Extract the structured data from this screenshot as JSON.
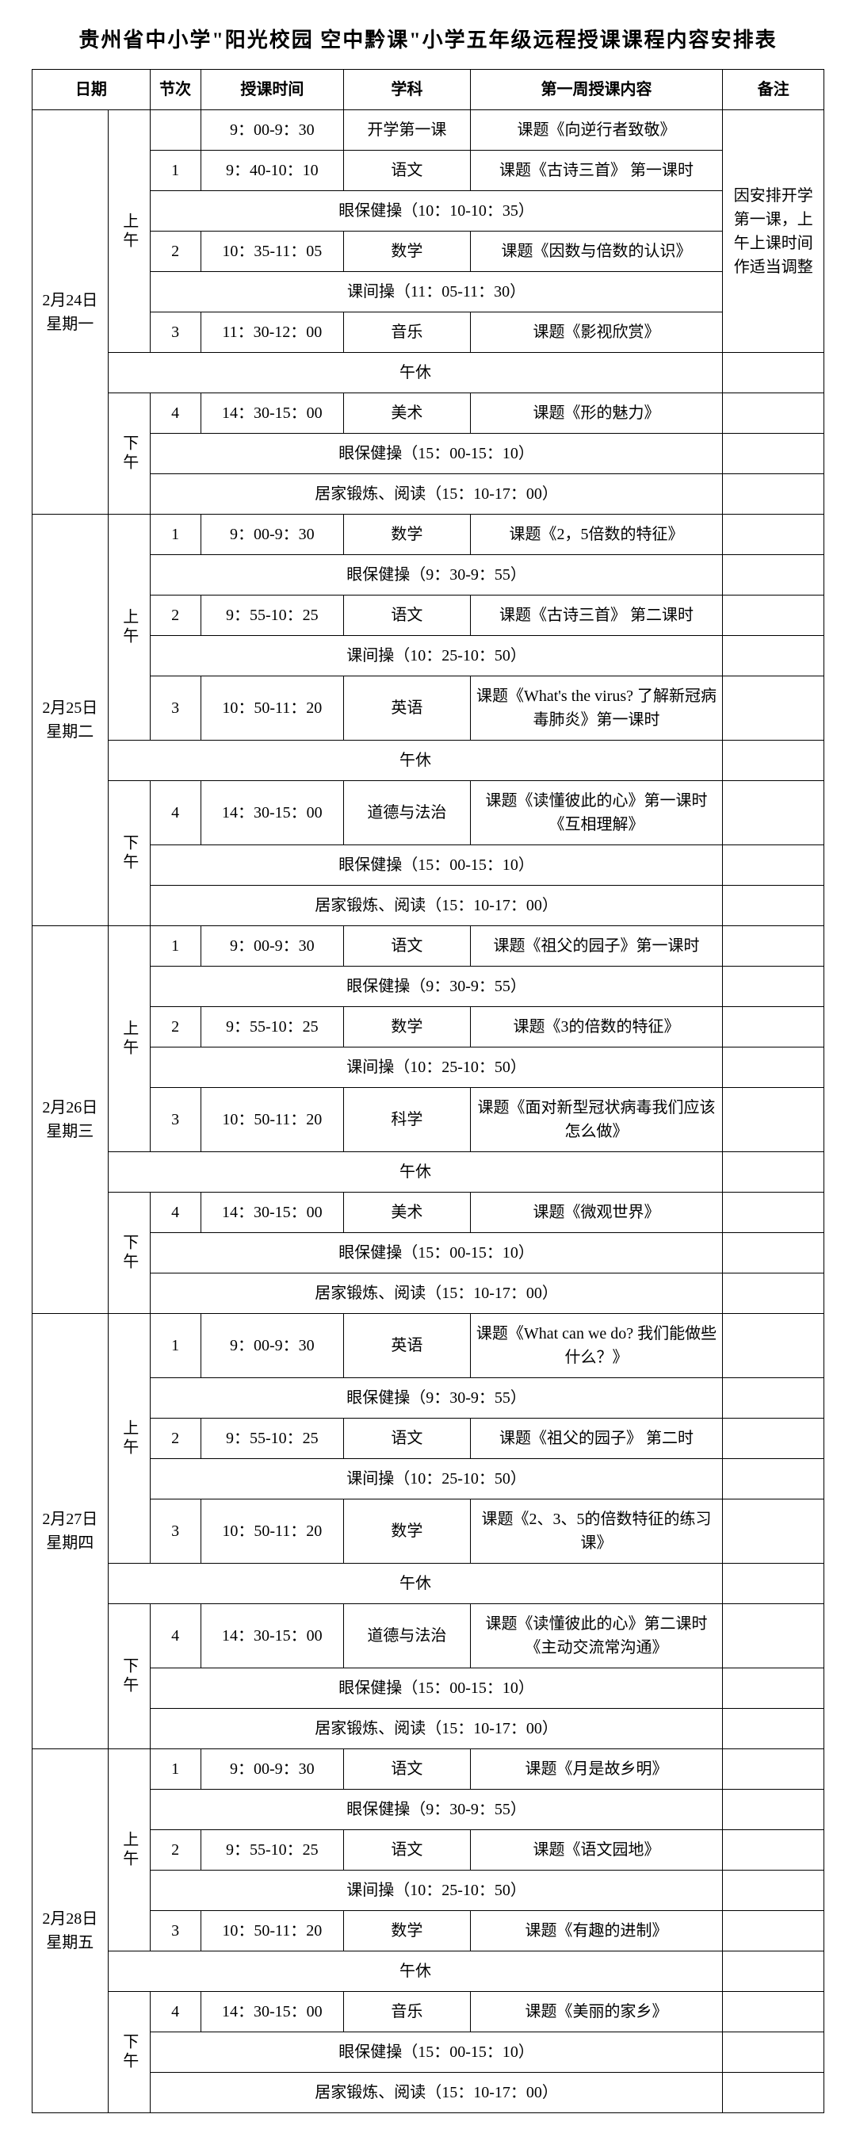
{
  "title": "贵州省中小学\"阳光校园 空中黔课\"小学五年级远程授课课程内容安排表",
  "headers": {
    "date": "日期",
    "period": "节次",
    "time": "授课时间",
    "subject": "学科",
    "content": "第一周授课内容",
    "note": "备注"
  },
  "sessions": {
    "morning": "上午",
    "afternoon": "下午"
  },
  "breaks": {
    "eyeA": "眼保健操（10：10-10：35）",
    "midA": "课间操（11：05-11：30）",
    "lunch": "午休",
    "eyePM": "眼保健操（15：00-15：10）",
    "home": "居家锻炼、阅读（15：10-17：00）",
    "eyeB": "眼保健操（9：30-9：55）",
    "midB": "课间操（10：25-10：50）"
  },
  "note1": "因安排开学第一课，上午上课时间作适当调整",
  "days": [
    {
      "date": "2月24日星期一",
      "am": [
        {
          "n": "",
          "t": "9：00-9：30",
          "s": "开学第一课",
          "c": "课题《向逆行者致敬》"
        },
        {
          "n": "1",
          "t": "9：40-10：10",
          "s": "语文",
          "c": "课题《古诗三首》 第一课时"
        },
        {
          "n": "2",
          "t": "10：35-11：05",
          "s": "数学",
          "c": "课题《因数与倍数的认识》"
        },
        {
          "n": "3",
          "t": "11：30-12：00",
          "s": "音乐",
          "c": "课题《影视欣赏》"
        }
      ],
      "pm": [
        {
          "n": "4",
          "t": "14：30-15：00",
          "s": "美术",
          "c": "课题《形的魅力》"
        }
      ]
    },
    {
      "date": "2月25日星期二",
      "am": [
        {
          "n": "1",
          "t": "9：00-9：30",
          "s": "数学",
          "c": "课题《2，5倍数的特征》"
        },
        {
          "n": "2",
          "t": "9：55-10：25",
          "s": "语文",
          "c": "课题《古诗三首》 第二课时"
        },
        {
          "n": "3",
          "t": "10：50-11：20",
          "s": "英语",
          "c": "课题《What's the virus? 了解新冠病毒肺炎》第一课时"
        }
      ],
      "pm": [
        {
          "n": "4",
          "t": "14：30-15：00",
          "s": "道德与法治",
          "c": "课题《读懂彼此的心》第一课时《互相理解》"
        }
      ]
    },
    {
      "date": "2月26日星期三",
      "am": [
        {
          "n": "1",
          "t": "9：00-9：30",
          "s": "语文",
          "c": "课题《祖父的园子》第一课时"
        },
        {
          "n": "2",
          "t": "9：55-10：25",
          "s": "数学",
          "c": "课题《3的倍数的特征》"
        },
        {
          "n": "3",
          "t": "10：50-11：20",
          "s": "科学",
          "c": "课题《面对新型冠状病毒我们应该怎么做》"
        }
      ],
      "pm": [
        {
          "n": "4",
          "t": "14：30-15：00",
          "s": "美术",
          "c": "课题《微观世界》"
        }
      ]
    },
    {
      "date": "2月27日星期四",
      "am": [
        {
          "n": "1",
          "t": "9：00-9：30",
          "s": "英语",
          "c": "课题《What can we do? 我们能做些什么？》"
        },
        {
          "n": "2",
          "t": "9：55-10：25",
          "s": "语文",
          "c": "课题《祖父的园子》 第二时"
        },
        {
          "n": "3",
          "t": "10：50-11：20",
          "s": "数学",
          "c": "课题《2、3、5的倍数特征的练习课》"
        }
      ],
      "pm": [
        {
          "n": "4",
          "t": "14：30-15：00",
          "s": "道德与法治",
          "c": "课题《读懂彼此的心》第二课时《主动交流常沟通》"
        }
      ]
    },
    {
      "date": "2月28日星期五",
      "am": [
        {
          "n": "1",
          "t": "9：00-9：30",
          "s": "语文",
          "c": "课题《月是故乡明》"
        },
        {
          "n": "2",
          "t": "9：55-10：25",
          "s": "语文",
          "c": "课题《语文园地》"
        },
        {
          "n": "3",
          "t": "10：50-11：20",
          "s": "数学",
          "c": "课题《有趣的进制》"
        }
      ],
      "pm": [
        {
          "n": "4",
          "t": "14：30-15：00",
          "s": "音乐",
          "c": "课题《美丽的家乡》"
        }
      ]
    }
  ]
}
